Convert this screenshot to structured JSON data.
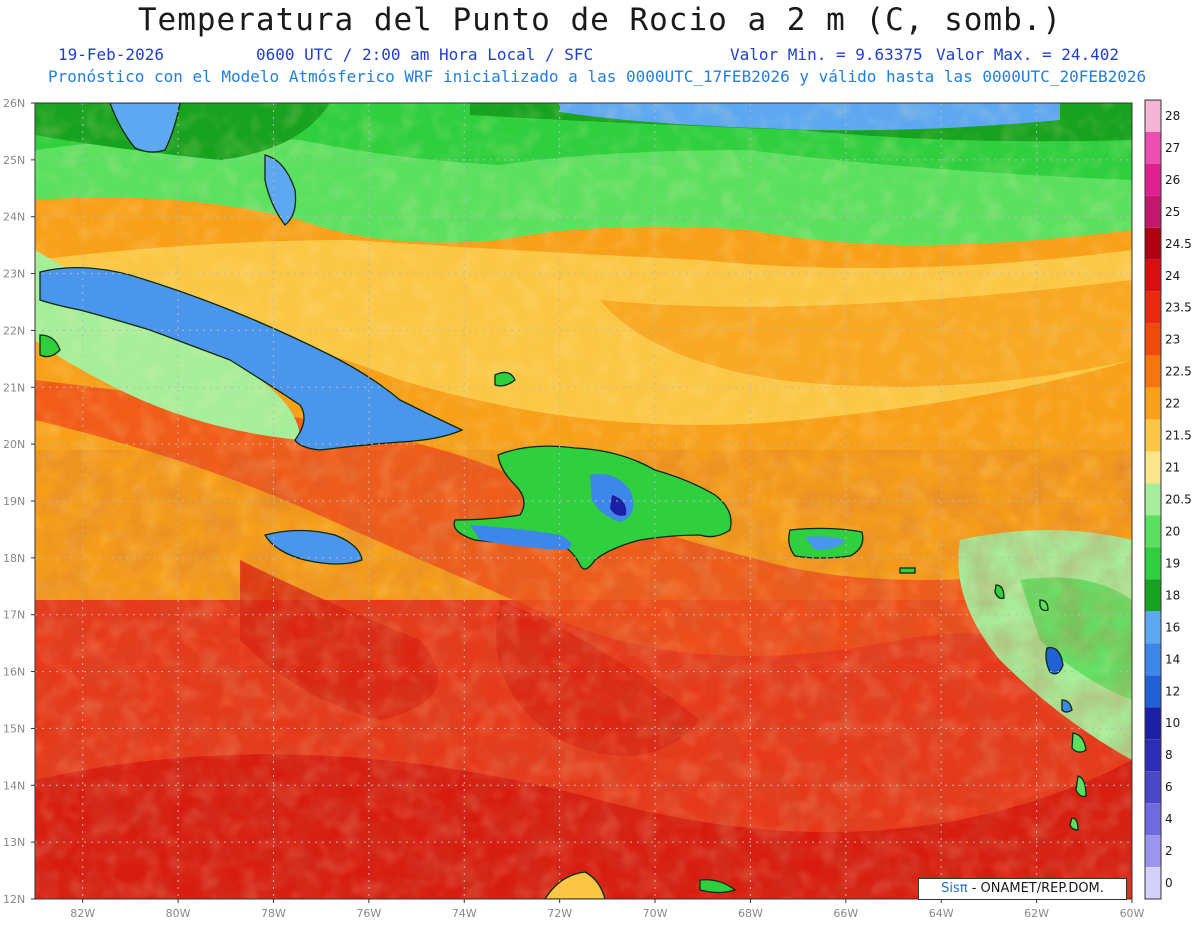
{
  "title": "Temperatura del Punto de Rocio a 2 m (C, somb.)",
  "subtitle_line1": {
    "date": "19-Feb-2026",
    "time": "0600 UTC / 2:00 am Hora Local / SFC",
    "min": "Valor Min. = 9.63375",
    "max": "Valor Max. = 24.402"
  },
  "subtitle_line2": "Pronóstico con el Modelo Atmósferico WRF inicializado a las 0000UTC_17FEB2026 y válido hasta las  0000UTC_20FEB2026",
  "lat_labels": [
    "26N",
    "25N",
    "24N",
    "23N",
    "22N",
    "21N",
    "20N",
    "19N",
    "18N",
    "17N",
    "16N",
    "15N",
    "14N",
    "13N",
    "12N"
  ],
  "lon_labels": [
    "82W",
    "80W",
    "78W",
    "76W",
    "74W",
    "72W",
    "70W",
    "68W",
    "66W",
    "64W",
    "62W",
    "60W"
  ],
  "colorbar": {
    "labels": [
      "28",
      "27",
      "26",
      "25",
      "24.5",
      "24",
      "23.5",
      "23",
      "22.5",
      "22",
      "21.5",
      "21",
      "20.5",
      "20",
      "19",
      "18",
      "16",
      "14",
      "12",
      "10",
      "8",
      "6",
      "4",
      "2",
      "0"
    ],
    "colors": [
      "#f4b4d6",
      "#ec4fb0",
      "#e0208f",
      "#c2176d",
      "#b00012",
      "#d80f0f",
      "#e82a10",
      "#f04a0c",
      "#f5750e",
      "#f8a019",
      "#fbc745",
      "#fbe58a",
      "#a6ee9a",
      "#5be060",
      "#2fcf3f",
      "#17a21f",
      "#5ea8f2",
      "#3d86ea",
      "#2161d8",
      "#1b1fa5",
      "#2c2cb6",
      "#4a48c8",
      "#6f6be0",
      "#9b95ef",
      "#d4d2f8"
    ]
  },
  "credit": {
    "brand": "Sisπ",
    "text": " - ONAMET/REP.DOM."
  },
  "colors": {
    "title": "#1a1a1a",
    "subtitle_blue": "#1f3fcf",
    "subtitle_cyan": "#1f7fe0"
  }
}
